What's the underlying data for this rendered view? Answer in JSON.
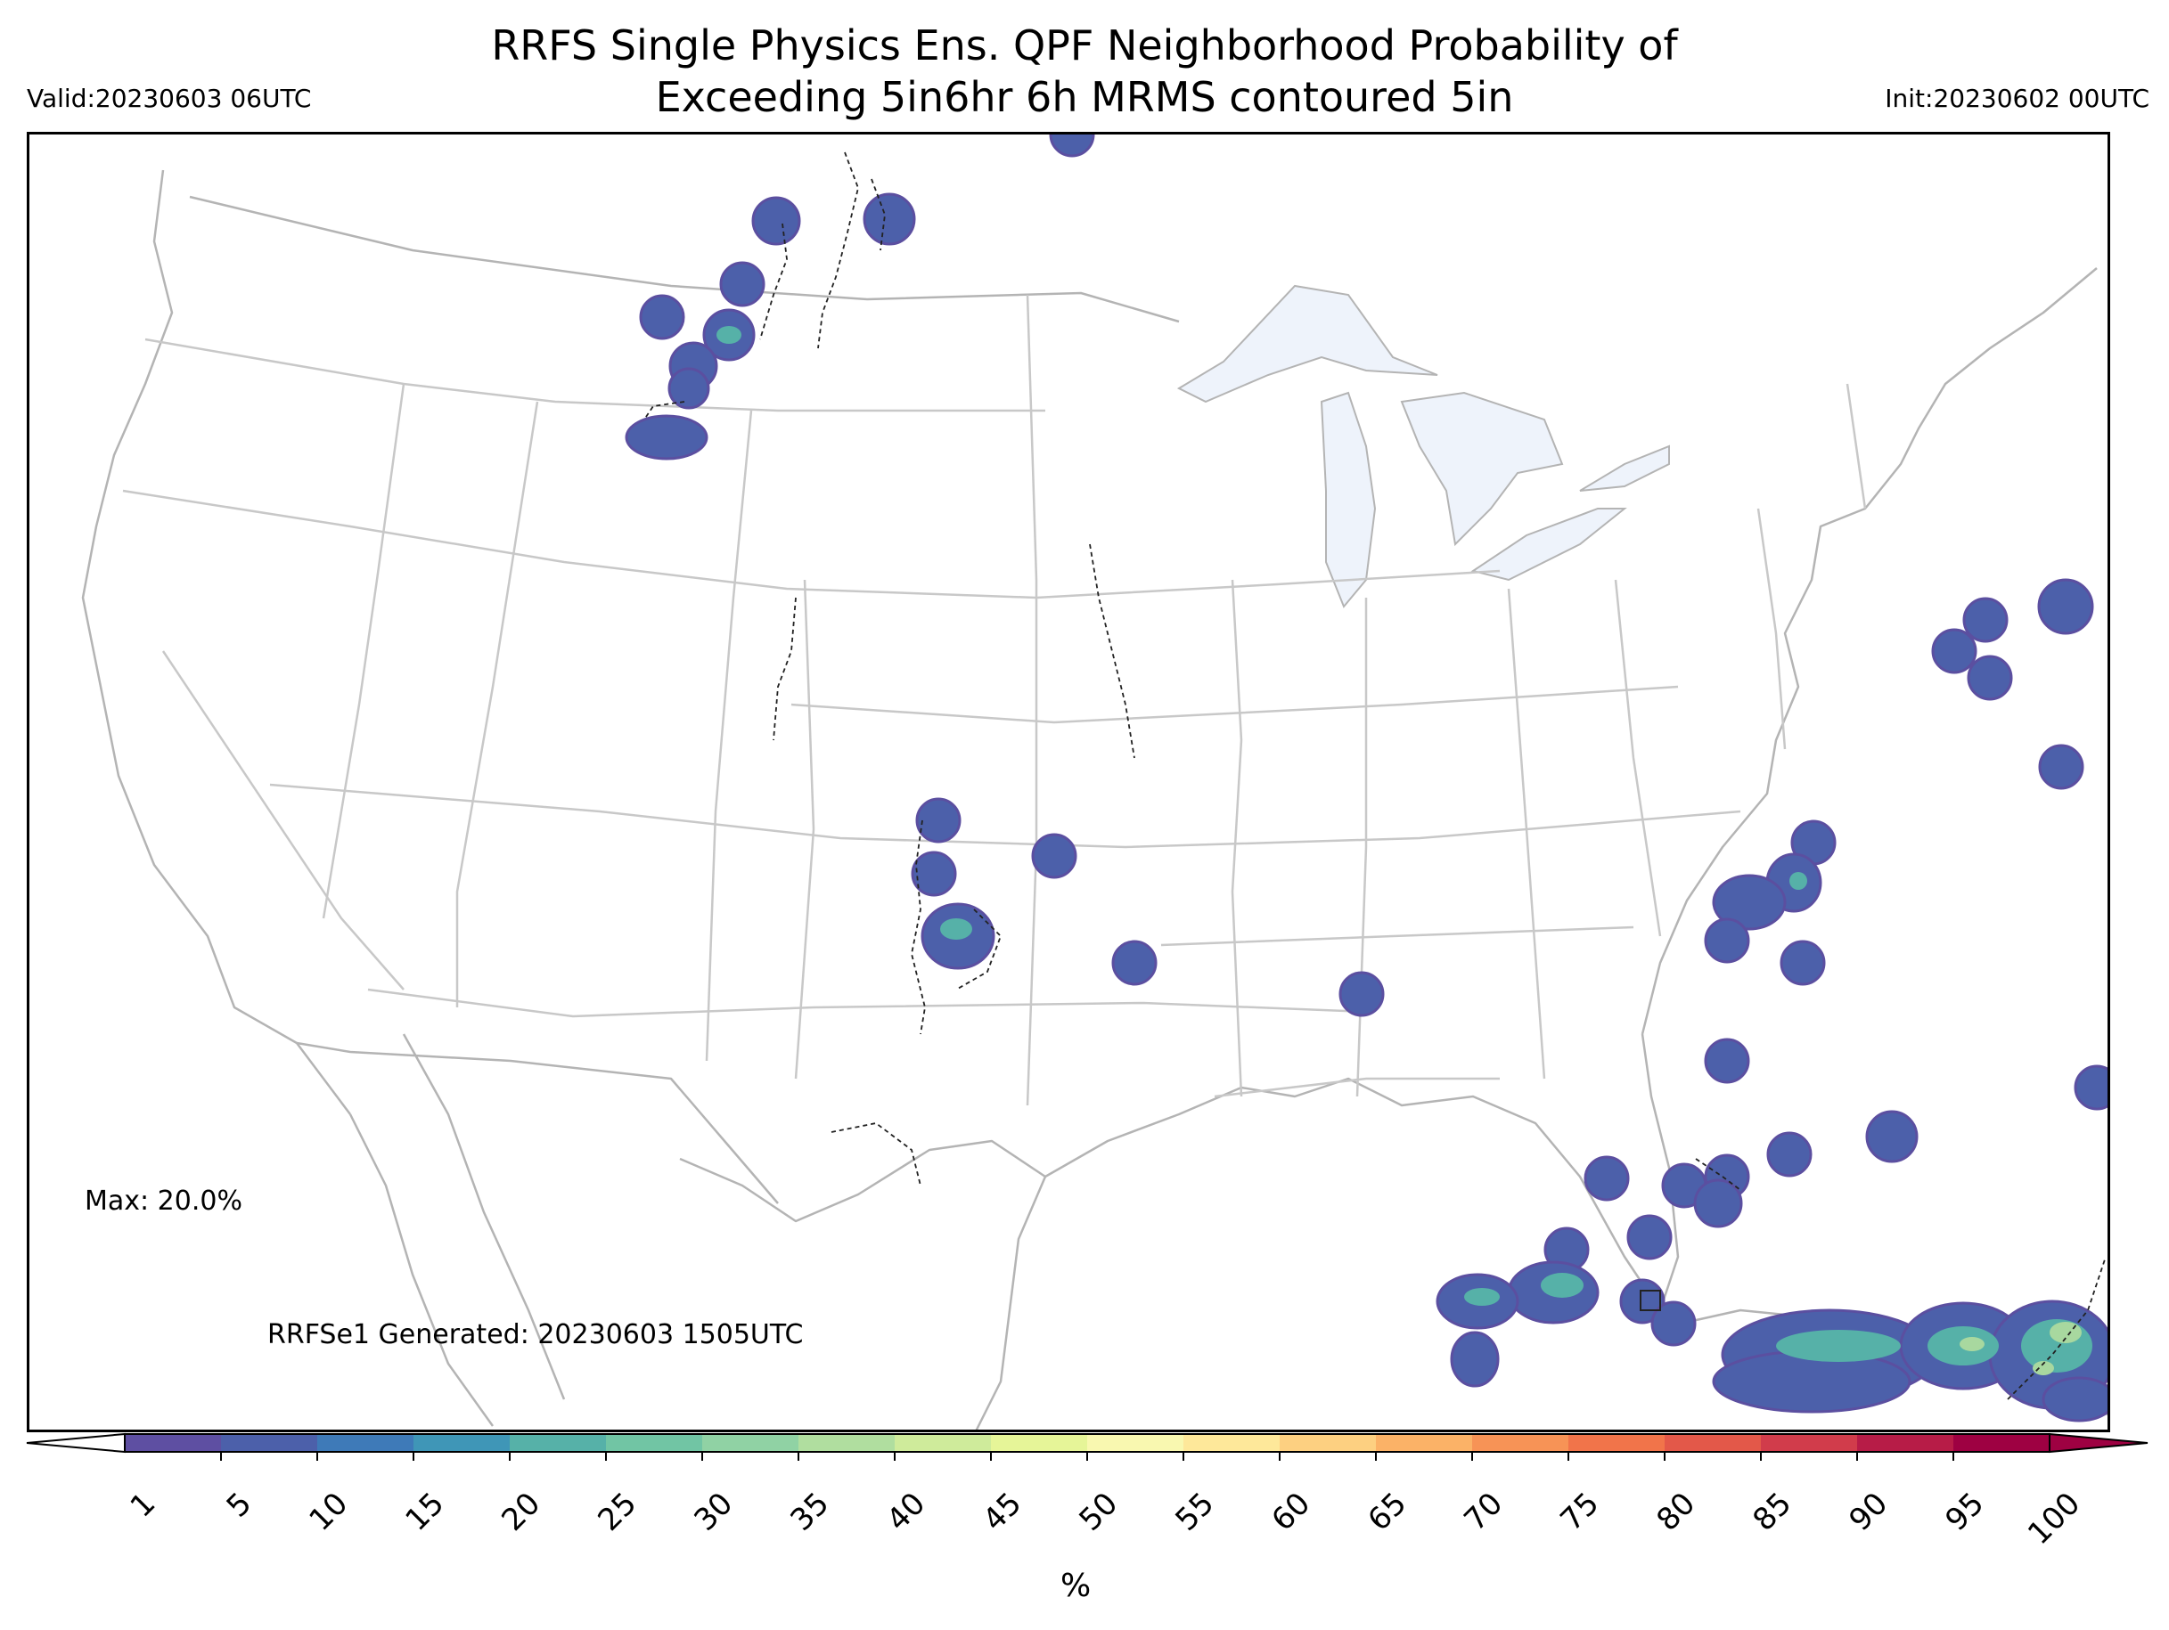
{
  "header": {
    "title_line1": "RRFS Single Physics Ens. QPF Neighborhood Probability of",
    "title_line2": "Exceeding 5in6hr 6h MRMS contoured 5in",
    "valid": "Valid:20230603 06UTC",
    "init": "Init:20230602 00UTC"
  },
  "annotations": {
    "max": "Max: 20.0%",
    "generated": "RRFSe1 Generated: 20230603 1505UTC"
  },
  "colorbar": {
    "unit": "%",
    "ticks": [
      "1",
      "5",
      "10",
      "15",
      "20",
      "25",
      "30",
      "35",
      "40",
      "45",
      "50",
      "55",
      "60",
      "65",
      "70",
      "75",
      "80",
      "85",
      "90",
      "95",
      "100"
    ],
    "colors": [
      "#5e4fa2",
      "#4c60aa",
      "#3e7ab8",
      "#3f96b7",
      "#56b1a8",
      "#71c5a4",
      "#90d2a4",
      "#b0de9f",
      "#cfeb9b",
      "#e6f598",
      "#f9f8b0",
      "#fee89a",
      "#fdd081",
      "#fbb267",
      "#f79356",
      "#f1744a",
      "#e35849",
      "#d13c4b",
      "#b71c47",
      "#9e0142"
    ]
  },
  "legend_colors": {
    "low_prob": "#4c60aa",
    "mid_prob": "#56b1a8",
    "high_prob": "#a8d89f",
    "state_lines": "#c8c8c8",
    "coast_lines": "#b4b4b4",
    "lakes": "#eef3fb",
    "mrms_contour": "#222222"
  }
}
